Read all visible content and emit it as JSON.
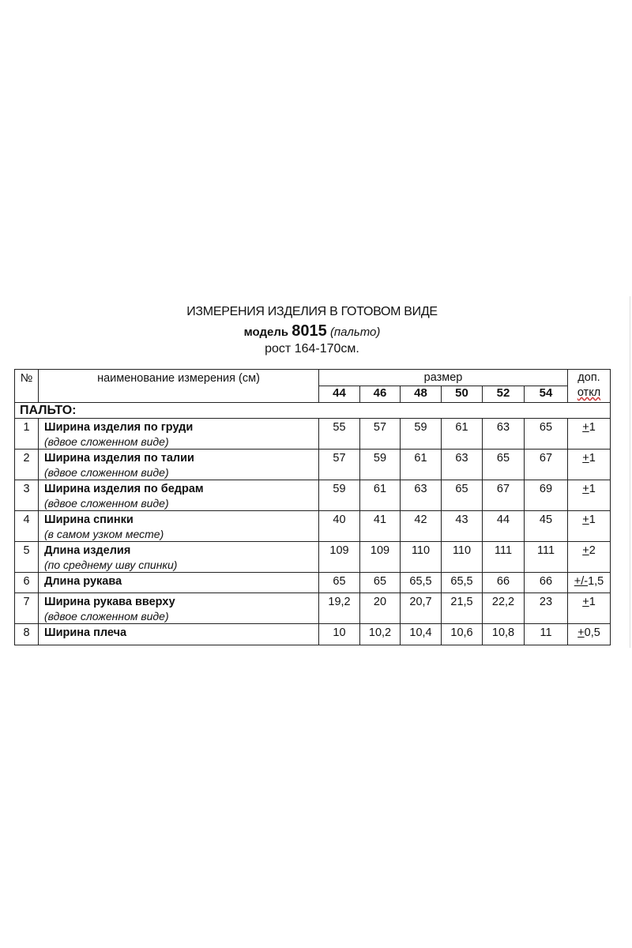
{
  "header": {
    "title": "ИЗМЕРЕНИЯ ИЗДЕЛИЯ В ГОТОВОМ ВИДЕ",
    "model_label": "модель",
    "model_number": "8015",
    "model_type": "(пальто)",
    "height": "рост 164-170см."
  },
  "table": {
    "col_no": "№",
    "col_name": "наименование измерения (см)",
    "col_size": "размер",
    "col_tol_1": "доп.",
    "col_tol_2": "откл",
    "sizes": [
      "44",
      "46",
      "48",
      "50",
      "52",
      "54"
    ],
    "section": "ПАЛЬТО:",
    "rows": [
      {
        "no": "1",
        "name": "Ширина изделия по груди",
        "note": "(вдвое сложенном виде)",
        "values": [
          "55",
          "57",
          "59",
          "61",
          "63",
          "65"
        ],
        "tol_sign": "+",
        "tol_value": "1"
      },
      {
        "no": "2",
        "name": "Ширина изделия по талии",
        "note": "(вдвое сложенном виде)",
        "values": [
          "57",
          "59",
          "61",
          "63",
          "65",
          "67"
        ],
        "tol_sign": "+",
        "tol_value": "1"
      },
      {
        "no": "3",
        "name": "Ширина изделия по бедрам",
        "note": "(вдвое сложенном виде)",
        "values": [
          "59",
          "61",
          "63",
          "65",
          "67",
          "69"
        ],
        "tol_sign": "+",
        "tol_value": "1"
      },
      {
        "no": "4",
        "name": "Ширина спинки",
        "note": " (в самом узком месте)",
        "values": [
          "40",
          "41",
          "42",
          "43",
          "44",
          "45"
        ],
        "tol_sign": "+",
        "tol_value": "1"
      },
      {
        "no": "5",
        "name": "Длина изделия",
        "note": " (по среднему шву спинки)",
        "values": [
          "109",
          "109",
          "110",
          "110",
          "111",
          "111"
        ],
        "tol_sign": "+",
        "tol_value": "2"
      },
      {
        "no": "6",
        "name": "Длина рукава",
        "note": "",
        "values": [
          "65",
          "65",
          "65,5",
          "65,5",
          "66",
          "66"
        ],
        "tol_sign": "+/-",
        "tol_value": "1,5"
      },
      {
        "no": "7",
        "name": "Ширина рукава вверху",
        "note": "(вдвое сложенном виде)",
        "values": [
          "19,2",
          "20",
          "20,7",
          "21,5",
          "22,2",
          "23"
        ],
        "tol_sign": "+",
        "tol_value": "1"
      },
      {
        "no": "8",
        "name": "Ширина плеча",
        "note": "",
        "values": [
          "10",
          "10,2",
          "10,4",
          "10,6",
          "10,8",
          "11"
        ],
        "tol_sign": "+",
        "tol_value": "0,5"
      }
    ]
  }
}
